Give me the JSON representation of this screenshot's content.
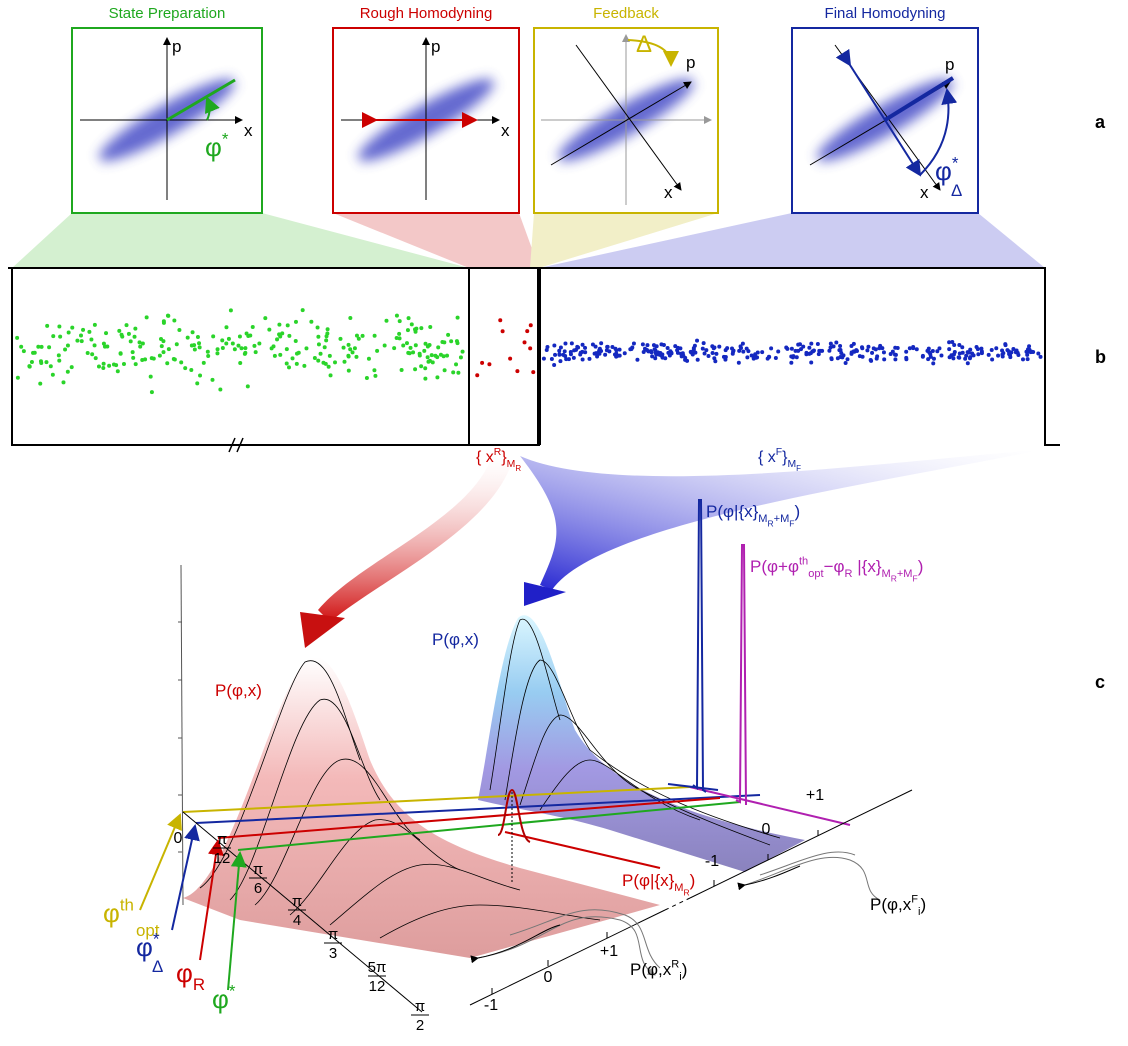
{
  "panel_a": {
    "label": "a",
    "boxes": [
      {
        "title": "State Preparation",
        "p": "p",
        "x": "x",
        "angle": {
          "base": "φ",
          "sup": "*"
        }
      },
      {
        "title": "Rough Homodyning",
        "p": "p",
        "x": "x"
      },
      {
        "title": "Feedback",
        "p": "p",
        "x": "x",
        "angle": "Δ"
      },
      {
        "title": "Final Homodyning",
        "p": "p",
        "x": "x",
        "angle": {
          "base": "φ",
          "sup": "*",
          "sub": "Δ"
        }
      }
    ]
  },
  "panel_b": {
    "label": "b",
    "rough_set": {
      "open": "{ x",
      "sup": "R",
      "close": "}",
      "sub": "M",
      "subsub": "R"
    },
    "final_set": {
      "open": "{ x",
      "sup": "F",
      "close": "}",
      "sub": "M",
      "subsub": "F"
    }
  },
  "panel_c": {
    "label": "c",
    "rough_surface": "P(φ,x)",
    "final_surface": "P(φ,x)",
    "posterior_total": {
      "open": "P(φ|{x}",
      "sub1": "M",
      "subsub1": "R",
      "sub2": "+M",
      "subsub2": "F",
      "close": ")"
    },
    "posterior_shifted": {
      "open": "P(φ+φ",
      "sup": "th",
      "sub": "opt",
      "mid": "−φ",
      "sub_r": "R",
      "given": " |{x}",
      "sub1": "M",
      "subsub1": "R",
      "sub2": "+M",
      "subsub2": "F",
      "close": ")"
    },
    "posterior_rough": {
      "open": "P(φ|{x}",
      "sub": "M",
      "subsub": "R",
      "close": ")"
    },
    "likelihood_final": {
      "open": "P(φ,x",
      "sub": "i",
      "sup": "F",
      "close": ")"
    },
    "likelihood_rough": {
      "open": "P(φ,x",
      "sub": "i",
      "sup": "R",
      "close": ")"
    },
    "phase_markers": {
      "opt": {
        "base": "φ",
        "sup": "th",
        "sub": "opt"
      },
      "delta": {
        "base": "φ",
        "sup": "*",
        "sub": "Δ"
      },
      "rough": {
        "base": "φ",
        "sub": "R"
      },
      "star": {
        "base": "φ",
        "sup": "*"
      }
    },
    "phase_ticks": [
      "0",
      {
        "num": "π",
        "den": "12"
      },
      {
        "num": "π",
        "den": "6"
      },
      {
        "num": "π",
        "den": "4"
      },
      {
        "num": "π",
        "den": "3"
      },
      {
        "num": "5π",
        "den": "12"
      },
      {
        "num": "π",
        "den": "2"
      }
    ],
    "x_ticks_rough": [
      "-1",
      "0",
      "+1"
    ],
    "x_ticks_final": [
      "-1",
      "0",
      "+1"
    ]
  }
}
